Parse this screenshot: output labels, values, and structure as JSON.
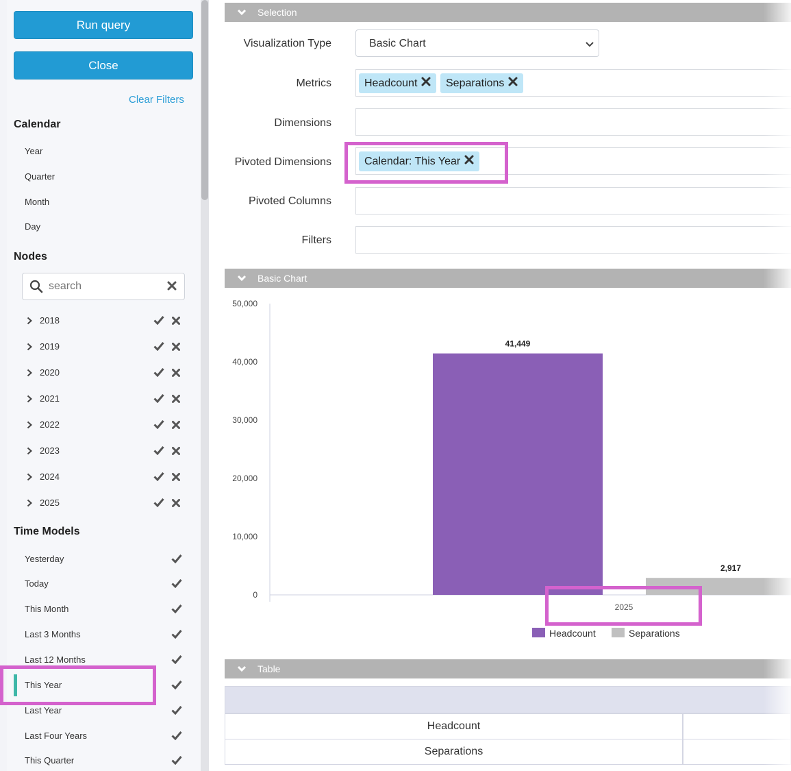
{
  "sidebar": {
    "run_query": "Run query",
    "close": "Close",
    "clear_filters": "Clear Filters",
    "calendar": {
      "title": "Calendar",
      "items": [
        "Year",
        "Quarter",
        "Month",
        "Day"
      ]
    },
    "nodes": {
      "title": "Nodes",
      "search_placeholder": "search",
      "items": [
        "2018",
        "2019",
        "2020",
        "2021",
        "2022",
        "2023",
        "2024",
        "2025"
      ]
    },
    "time_models": {
      "title": "Time Models",
      "items": [
        "Yesterday",
        "Today",
        "This Month",
        "Last 3 Months",
        "Last 12 Months",
        "This Year",
        "Last Year",
        "Last Four Years",
        "This Quarter"
      ],
      "active": "This Year"
    }
  },
  "selection": {
    "title": "Selection",
    "visualization_type": {
      "label": "Visualization Type",
      "value": "Basic Chart"
    },
    "metrics": {
      "label": "Metrics",
      "tags": [
        "Headcount",
        "Separations"
      ]
    },
    "dimensions": {
      "label": "Dimensions"
    },
    "pivoted_dimensions": {
      "label": "Pivoted Dimensions",
      "tags": [
        "Calendar: This Year"
      ]
    },
    "pivoted_columns": {
      "label": "Pivoted Columns"
    },
    "filters": {
      "label": "Filters"
    }
  },
  "chart_panel": {
    "title": "Basic Chart"
  },
  "chart_data": {
    "type": "bar",
    "categories": [
      "2025"
    ],
    "series": [
      {
        "name": "Headcount",
        "values": [
          41449
        ],
        "label": "41,449",
        "color": "#8a5fb6"
      },
      {
        "name": "Separations",
        "values": [
          2917
        ],
        "label": "2,917",
        "color": "#c0c0c0"
      }
    ],
    "yticks": [
      "0",
      "10,000",
      "20,000",
      "30,000",
      "40,000",
      "50,000"
    ],
    "ylim": [
      0,
      50000
    ],
    "legend": "bottom"
  },
  "table_panel": {
    "title": "Table",
    "rows": [
      "Headcount",
      "Separations"
    ]
  },
  "colors": {
    "accent": "#229bd4",
    "highlight": "#d462cd",
    "tag": "#bfe6f7",
    "active_marker": "#3fb7a8"
  }
}
